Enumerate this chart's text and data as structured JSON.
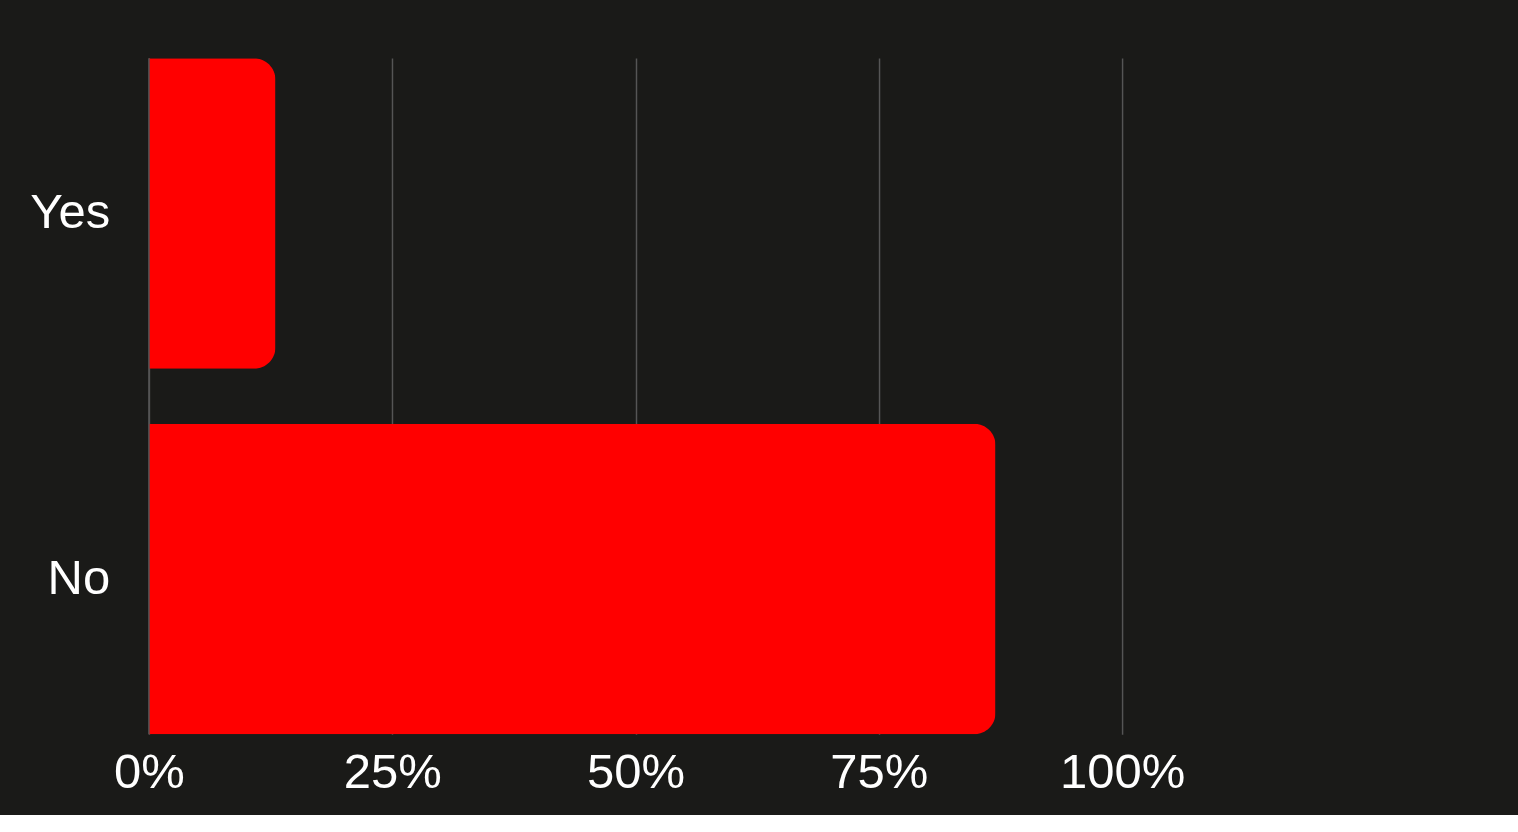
{
  "chart_data": {
    "type": "bar",
    "orientation": "horizontal",
    "categories": [
      "Yes",
      "No"
    ],
    "values": [
      13,
      87
    ],
    "color": "#ff0000",
    "xlim": [
      0,
      100
    ],
    "xticks": [
      {
        "value": 0,
        "label": "0%"
      },
      {
        "value": 25,
        "label": "25%"
      },
      {
        "value": 50,
        "label": "50%"
      },
      {
        "value": 75,
        "label": "75%"
      },
      {
        "value": 100,
        "label": "100%"
      }
    ],
    "grid": "x"
  }
}
